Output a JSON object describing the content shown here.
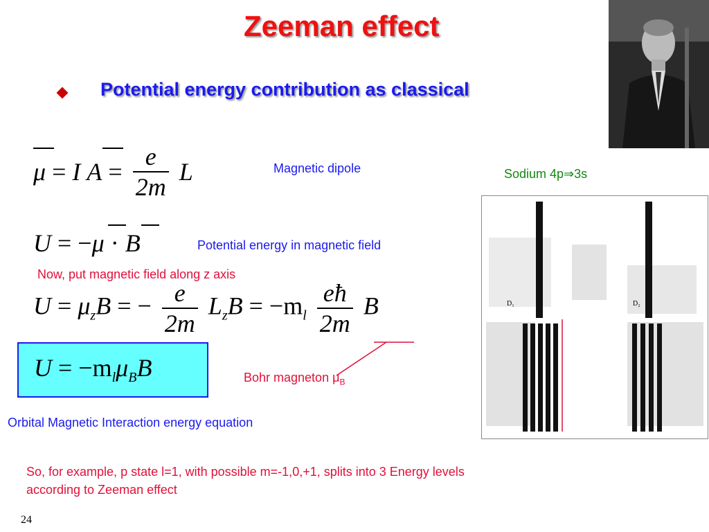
{
  "slide": {
    "title": "Zeeman effect",
    "bullet": "Potential energy contribution as classical",
    "page_number": "24"
  },
  "equations": {
    "eq1": {
      "mu": "μ",
      "eq": "=",
      "I": "I",
      "A": "A",
      "eq2": "=",
      "num": "e",
      "den": "2m",
      "L": "L"
    },
    "eq2": {
      "U": "U",
      "eq": "= −",
      "mu": "μ",
      "dot": "·",
      "B": "B"
    },
    "eq3": {
      "U": "U",
      "eq1": "=",
      "mu": "μ",
      "z1": "z",
      "B1": "B",
      "eq2": "= −",
      "num1": "e",
      "den1": "2m",
      "L": "L",
      "z2": "z",
      "B2": "B",
      "eq3": "= −m",
      "l": "l",
      "num2": "eħ",
      "den2": "2m",
      "B3": "B"
    },
    "eq4": {
      "U": "U",
      "eq": "= −m",
      "l": "l",
      "mu": "μ",
      "B_sub": "B",
      "B": "B"
    }
  },
  "annotations": {
    "magnetic_dipole": "Magnetic dipole",
    "potential_energy": "Potential energy in magnetic field",
    "z_axis": "Now, put magnetic field along z axis",
    "bohr_magneton": "Bohr magneton μ",
    "bohr_sub": "B",
    "orbital": "Orbital Magnetic Interaction energy equation",
    "sodium": "Sodium 4p⇒3s",
    "conclusion_line1": "So, for example, p state l=1, with possible m=-1,0,+1,  splits into 3 Energy levels",
    "conclusion_line2": "according to Zeeman effect"
  },
  "spectrum_labels": {
    "d1": "D₁",
    "d2": "D₂"
  },
  "colors": {
    "title": "#ee1111",
    "bullet_text": "#1a1aee",
    "annotation_red": "#e0103a",
    "annotation_green": "#118811",
    "box_fill": "#66ffff"
  }
}
